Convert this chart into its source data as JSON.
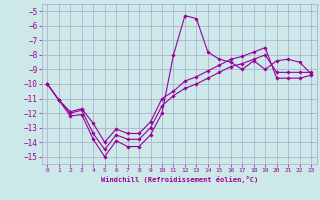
{
  "xlabel": "Windchill (Refroidissement éolien,°C)",
  "background_color": "#cce8e8",
  "grid_color": "#aaaacc",
  "line_color": "#990099",
  "x_ticks": [
    0,
    1,
    2,
    3,
    4,
    5,
    6,
    7,
    8,
    9,
    10,
    11,
    12,
    13,
    14,
    15,
    16,
    17,
    18,
    19,
    20,
    21,
    22,
    23
  ],
  "y_ticks": [
    -5,
    -6,
    -7,
    -8,
    -9,
    -10,
    -11,
    -12,
    -13,
    -14,
    -15
  ],
  "xlim": [
    -0.5,
    23.5
  ],
  "ylim": [
    -15.5,
    -4.5
  ],
  "series": [
    [
      -10.0,
      -11.1,
      -12.2,
      -12.1,
      -13.8,
      -15.0,
      -13.9,
      -14.3,
      -14.3,
      -13.5,
      -12.0,
      -8.0,
      -5.3,
      -5.5,
      -7.8,
      -8.3,
      -8.5,
      -9.0,
      -8.4,
      -9.0,
      -8.4,
      -8.3,
      -8.5,
      -9.3
    ],
    [
      -10.0,
      -11.1,
      -12.0,
      -11.8,
      -13.4,
      -14.5,
      -13.5,
      -13.8,
      -13.8,
      -13.0,
      -11.5,
      -10.8,
      -10.3,
      -10.0,
      -9.6,
      -9.2,
      -8.8,
      -8.6,
      -8.3,
      -8.0,
      -9.2,
      -9.2,
      -9.2,
      -9.2
    ],
    [
      -10.0,
      -11.1,
      -11.9,
      -11.7,
      -12.7,
      -14.0,
      -13.1,
      -13.4,
      -13.4,
      -12.6,
      -11.0,
      -10.5,
      -9.8,
      -9.5,
      -9.1,
      -8.7,
      -8.3,
      -8.1,
      -7.8,
      -7.5,
      -9.6,
      -9.6,
      -9.6,
      -9.4
    ]
  ]
}
